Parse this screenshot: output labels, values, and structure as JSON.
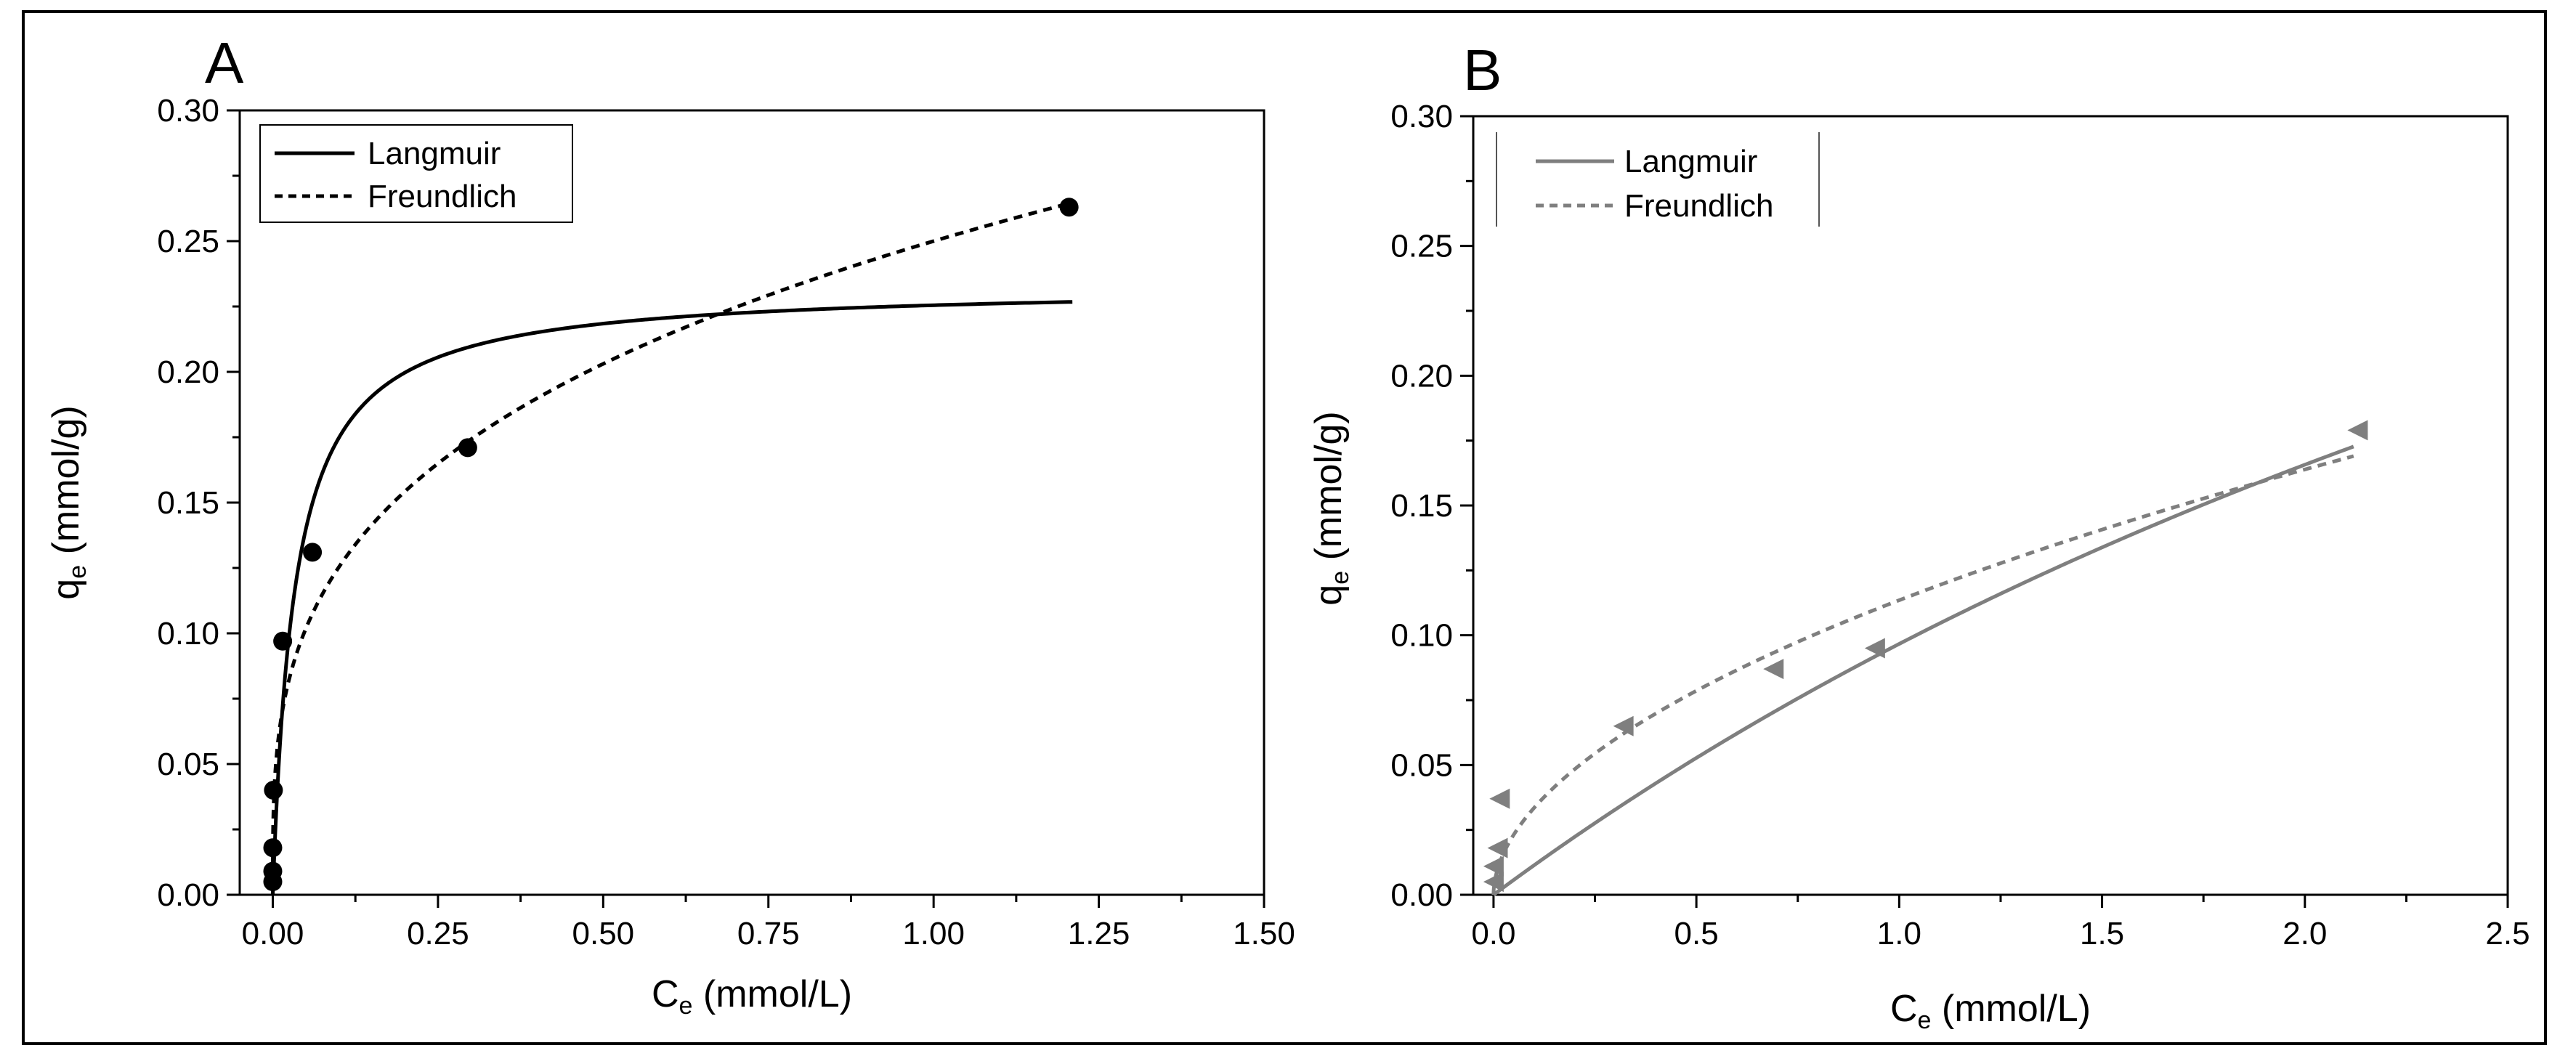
{
  "chart_data": [
    {
      "panel": "A",
      "type": "scatter",
      "xlabel": "C",
      "xlabel_sub": "e",
      "xlabel_unit": " (mmol/L)",
      "ylabel": "q",
      "ylabel_sub": "e",
      "ylabel_unit": " (mmol/g)",
      "xlim": [
        -0.05,
        1.5
      ],
      "ylim": [
        0,
        0.3
      ],
      "xticks": [
        0.0,
        0.25,
        0.5,
        0.75,
        1.0,
        1.25,
        1.5
      ],
      "xtick_labels": [
        "0.00",
        "0.25",
        "0.50",
        "0.75",
        "1.00",
        "1.25",
        "1.50"
      ],
      "yticks": [
        0.0,
        0.05,
        0.1,
        0.15,
        0.2,
        0.25,
        0.3
      ],
      "ytick_labels": [
        "0.00",
        "0.05",
        "0.10",
        "0.15",
        "0.20",
        "0.25",
        "0.30"
      ],
      "legend": [
        "Langmuir",
        "Freundlich"
      ],
      "legend_position": "top-left",
      "color": "#000000",
      "marker": "circle",
      "points": [
        {
          "x": 0.0,
          "y": 0.005
        },
        {
          "x": 0.0,
          "y": 0.009
        },
        {
          "x": 0.0,
          "y": 0.018
        },
        {
          "x": 0.001,
          "y": 0.04
        },
        {
          "x": 0.015,
          "y": 0.097
        },
        {
          "x": 0.06,
          "y": 0.131
        },
        {
          "x": 0.295,
          "y": 0.171
        },
        {
          "x": 1.205,
          "y": 0.263
        }
      ],
      "models": {
        "langmuir": {
          "qmax": 0.233,
          "K": 30
        },
        "freundlich": {
          "K": 0.25,
          "n": 0.3
        }
      },
      "curve_x_range": [
        0,
        1.21
      ]
    },
    {
      "panel": "B",
      "type": "scatter",
      "xlabel": "C",
      "xlabel_sub": "e",
      "xlabel_unit": " (mmol/L)",
      "ylabel": "q",
      "ylabel_sub": "e",
      "ylabel_unit": " (mmol/g)",
      "xlim": [
        -0.05,
        2.5
      ],
      "ylim": [
        0,
        0.3
      ],
      "xticks": [
        0.0,
        0.5,
        1.0,
        1.5,
        2.0,
        2.5
      ],
      "xtick_labels": [
        "0.0",
        "0.5",
        "1.0",
        "1.5",
        "2.0",
        "2.5"
      ],
      "yticks": [
        0.0,
        0.05,
        0.1,
        0.15,
        0.2,
        0.25,
        0.3
      ],
      "ytick_labels": [
        "0.00",
        "0.05",
        "0.10",
        "0.15",
        "0.20",
        "0.25",
        "0.30"
      ],
      "legend": [
        "Langmuir",
        "Freundlich"
      ],
      "legend_position": "top-left",
      "color": "#7f7f7f",
      "marker": "triangle-left",
      "points": [
        {
          "x": 0.0,
          "y": 0.005
        },
        {
          "x": 0.0,
          "y": 0.011
        },
        {
          "x": 0.01,
          "y": 0.018
        },
        {
          "x": 0.015,
          "y": 0.037
        },
        {
          "x": 0.32,
          "y": 0.065
        },
        {
          "x": 0.69,
          "y": 0.087
        },
        {
          "x": 0.94,
          "y": 0.095
        },
        {
          "x": 2.13,
          "y": 0.179
        }
      ],
      "models": {
        "langmuir": {
          "qmax": 0.58,
          "K": 0.2
        },
        "freundlich": {
          "K": 0.1135,
          "n": 0.53
        }
      },
      "curve_x_range": [
        0,
        2.12
      ]
    }
  ]
}
